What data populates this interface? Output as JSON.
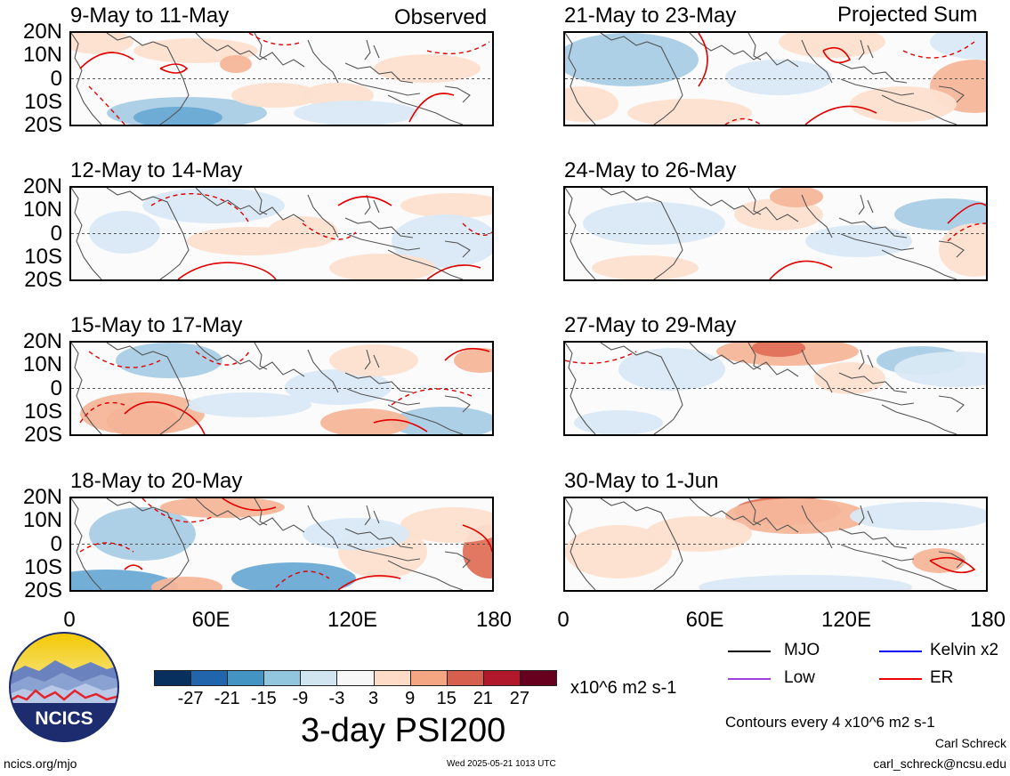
{
  "headers": {
    "observed": "Observed",
    "projected": "Projected Sum"
  },
  "lat_labels": [
    "20N",
    "10N",
    "0",
    "10S",
    "20S"
  ],
  "lon_labels": [
    "0",
    "60E",
    "120E",
    "180"
  ],
  "panels_left": [
    {
      "title": "9-May to 11-May"
    },
    {
      "title": "12-May to 14-May"
    },
    {
      "title": "15-May to 17-May"
    },
    {
      "title": "18-May to 20-May"
    }
  ],
  "panels_right": [
    {
      "title": "21-May to 23-May"
    },
    {
      "title": "24-May to 26-May"
    },
    {
      "title": "27-May to 29-May"
    },
    {
      "title": "30-May to 1-Jun"
    }
  ],
  "colorbar": {
    "colors": [
      "#08305e",
      "#2166ac",
      "#4393c3",
      "#92c5de",
      "#d1e5f0",
      "#f7f7f7",
      "#fddbc7",
      "#f4a582",
      "#d6604d",
      "#b2182b",
      "#67001f"
    ],
    "ticks": [
      "-27",
      "-21",
      "-15",
      "-9",
      "-3",
      "3",
      "9",
      "15",
      "21",
      "27"
    ],
    "units": "x10^6 m2 s-1",
    "title": "3-day PSI200"
  },
  "legend": {
    "items": [
      {
        "label": "MJO",
        "color": "#000000"
      },
      {
        "label": "Kelvin x2",
        "color": "#0000ee"
      },
      {
        "label": "Low",
        "color": "#a040e0"
      },
      {
        "label": "ER",
        "color": "#ee0000"
      }
    ],
    "contour_note": "Contours every 4 x10^6 m2 s-1"
  },
  "logo": {
    "text": "NCICS"
  },
  "footer": {
    "url": "ncics.org/mjo",
    "timestamp": "Wed 2025-05-21 1013 UTC",
    "author": "Carl Schreck",
    "email": "carl_schreck@ncsu.edu"
  }
}
